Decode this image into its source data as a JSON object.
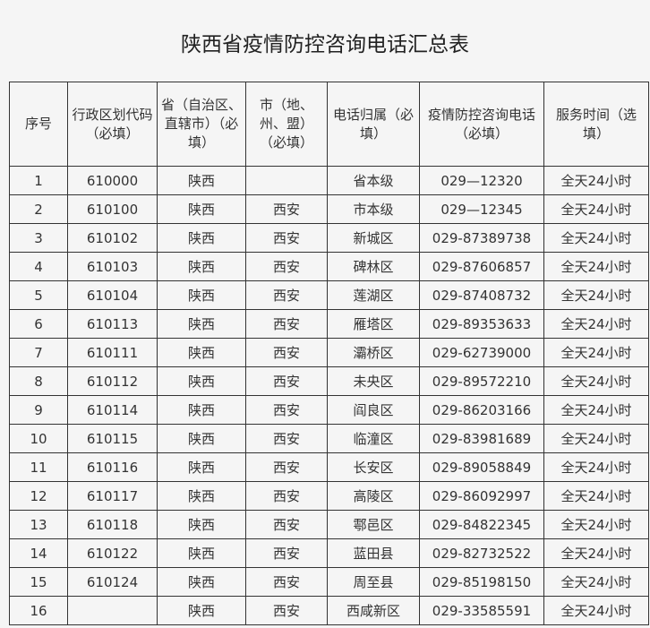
{
  "title": "陕西省疫情防控咨询电话汇总表",
  "headers": [
    "序号",
    "行政区划代码（必填）",
    "省（自治区、直辖市）（必填）",
    "市（地、州、盟）（必填）",
    "电话归属（必填）",
    "疫情防控咨询电话（必填）",
    "服务时间（选填）"
  ],
  "rows": [
    [
      "1",
      "610000",
      "陕西",
      "",
      "省本级",
      "029—12320",
      "全天24小时"
    ],
    [
      "2",
      "610100",
      "陕西",
      "西安",
      "市本级",
      "029—12345",
      "全天24小时"
    ],
    [
      "3",
      "610102",
      "陕西",
      "西安",
      "新城区",
      "029-87389738",
      "全天24小时"
    ],
    [
      "4",
      "610103",
      "陕西",
      "西安",
      "碑林区",
      "029-87606857",
      "全天24小时"
    ],
    [
      "5",
      "610104",
      "陕西",
      "西安",
      "莲湖区",
      "029-87408732",
      "全天24小时"
    ],
    [
      "6",
      "610113",
      "陕西",
      "西安",
      "雁塔区",
      "029-89353633",
      "全天24小时"
    ],
    [
      "7",
      "610111",
      "陕西",
      "西安",
      "灞桥区",
      "029-62739000",
      "全天24小时"
    ],
    [
      "8",
      "610112",
      "陕西",
      "西安",
      "未央区",
      "029-89572210",
      "全天24小时"
    ],
    [
      "9",
      "610114",
      "陕西",
      "西安",
      "阎良区",
      "029-86203166",
      "全天24小时"
    ],
    [
      "10",
      "610115",
      "陕西",
      "西安",
      "临潼区",
      "029-83981689",
      "全天24小时"
    ],
    [
      "11",
      "610116",
      "陕西",
      "西安",
      "长安区",
      "029-89058849",
      "全天24小时"
    ],
    [
      "12",
      "610117",
      "陕西",
      "西安",
      "高陵区",
      "029-86092997",
      "全天24小时"
    ],
    [
      "13",
      "610118",
      "陕西",
      "西安",
      "鄠邑区",
      "029-84822345",
      "全天24小时"
    ],
    [
      "14",
      "610122",
      "陕西",
      "西安",
      "蓝田县",
      "029-82732522",
      "全天24小时"
    ],
    [
      "15",
      "610124",
      "陕西",
      "西安",
      "周至县",
      "029-85198150",
      "全天24小时"
    ],
    [
      "16",
      "",
      "陕西",
      "西安",
      "西咸新区",
      "029-33585591",
      "全天24小时"
    ]
  ]
}
